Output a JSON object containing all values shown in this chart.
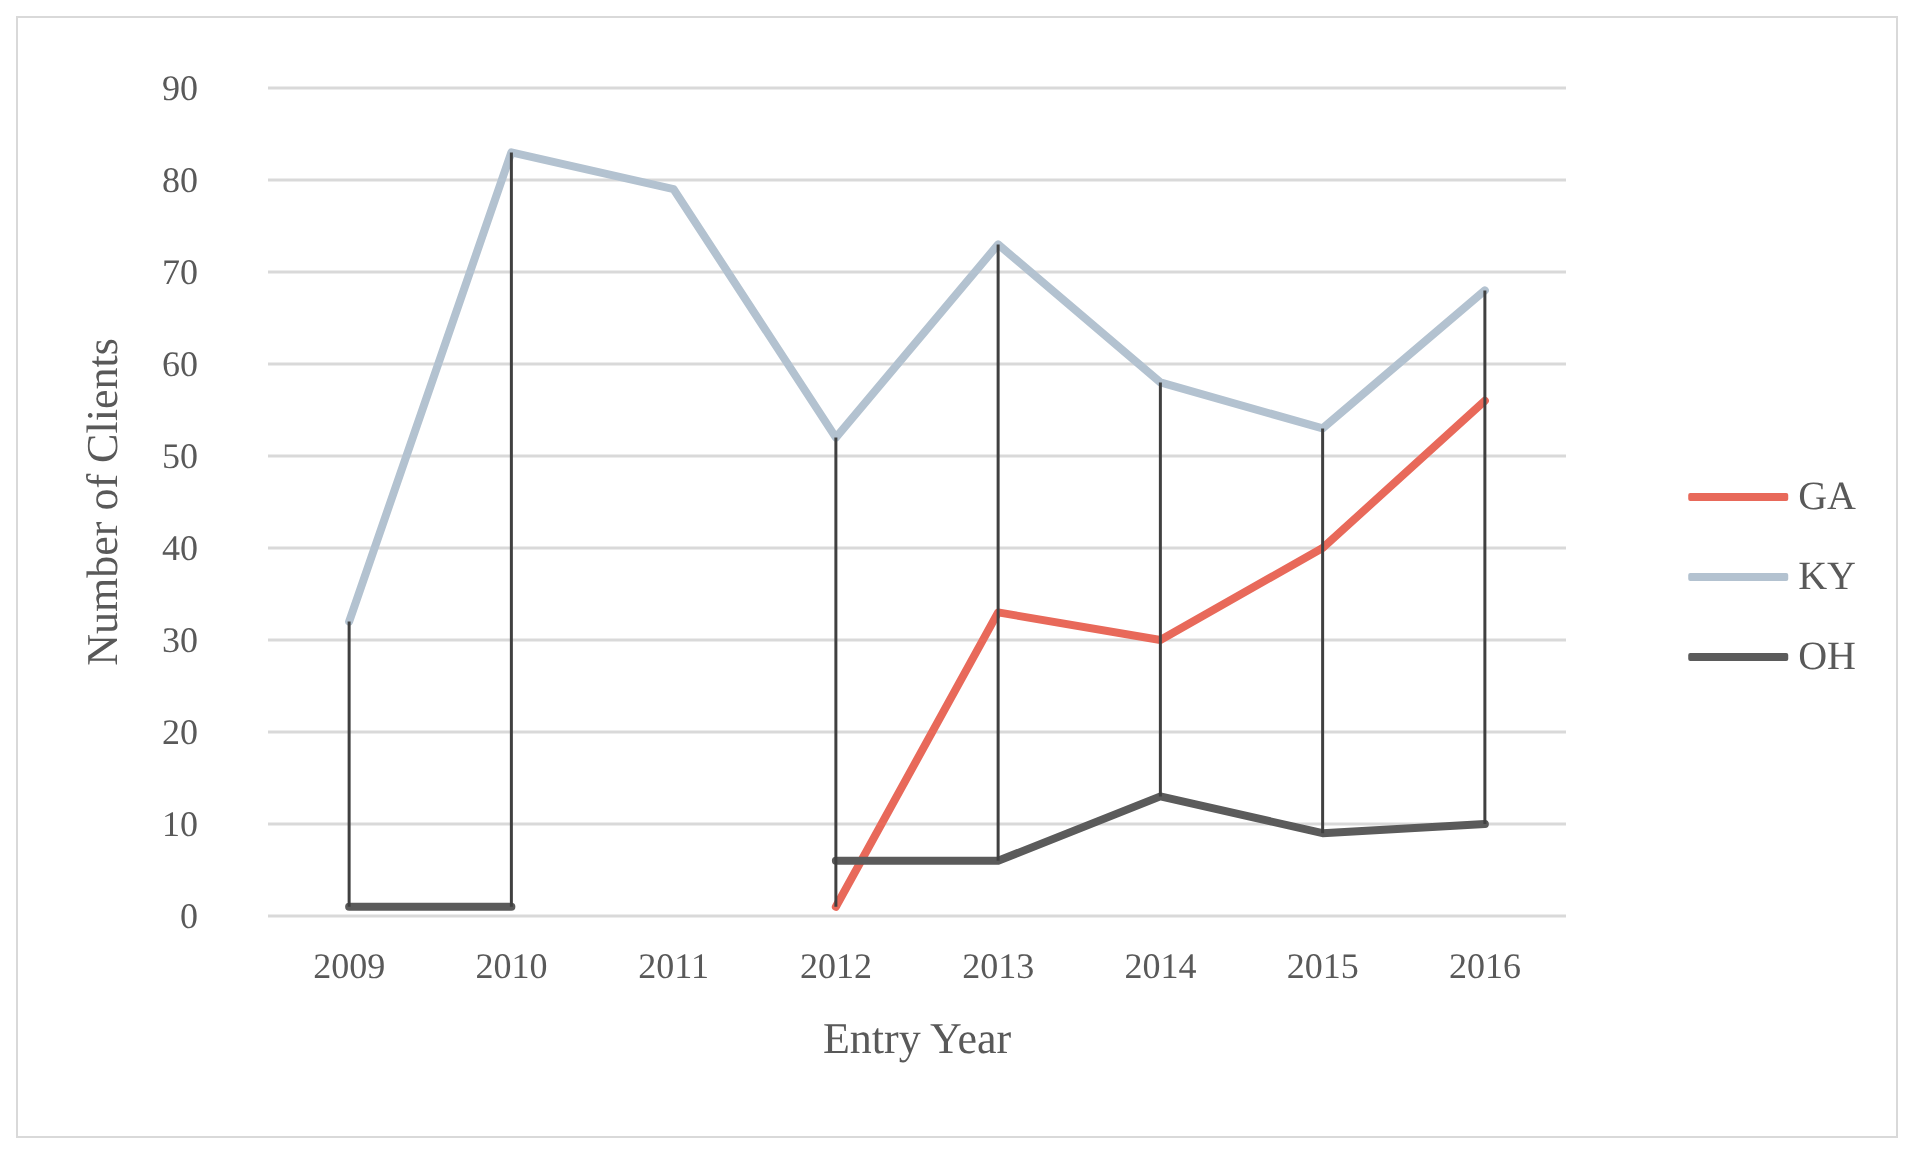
{
  "chart_data": {
    "type": "line",
    "xlabel": "Entry Year",
    "ylabel": "Number of Clients",
    "categories": [
      "2009",
      "2010",
      "2011",
      "2012",
      "2013",
      "2014",
      "2015",
      "2016"
    ],
    "series": [
      {
        "name": "GA",
        "color": "#e8695a",
        "values": [
          null,
          null,
          null,
          1,
          33,
          30,
          40,
          56
        ]
      },
      {
        "name": "KY",
        "color": "#b3c2d0",
        "values": [
          32,
          83,
          79,
          52,
          73,
          58,
          53,
          68
        ]
      },
      {
        "name": "OH",
        "color": "#5b5b5b",
        "values": [
          1,
          1,
          null,
          6,
          6,
          13,
          9,
          10
        ]
      },
      {
        "type": "bar",
        "color": "#404040",
        "base": [
          1,
          1,
          null,
          1,
          6,
          13,
          9,
          10
        ],
        "values": [
          31,
          82,
          null,
          51,
          67,
          45,
          44,
          58
        ]
      }
    ],
    "ylim": [
      0,
      90
    ],
    "yticks": [
      0,
      10,
      20,
      30,
      40,
      50,
      60,
      70,
      80,
      90
    ],
    "grid": "y",
    "legend": "right",
    "marker": "none",
    "line_style": "solid"
  }
}
